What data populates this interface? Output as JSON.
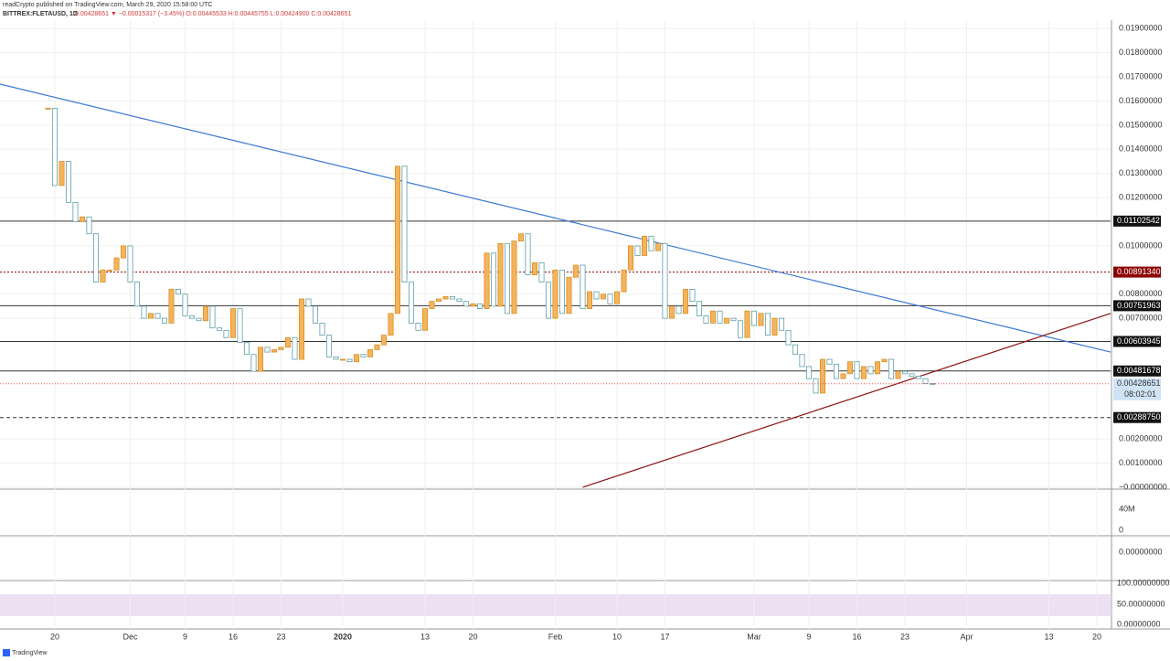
{
  "header": {
    "publisher": "readCrypto published on TradingView.com, March 29, 2020 15:58:00 UTC",
    "symbol": "BITTREX:FLETAUSD, 1D",
    "quote": "0.00428651 ▼ −0.00015317 (−3.45%) O:0.00445533 H:0.00445755 L:0.00424900 C:0.00428651"
  },
  "footer": {
    "brand": "TradingView"
  },
  "chart_data": {
    "type": "candlestick",
    "up_color": "#f5b45a",
    "down_color": "#7fd3dc",
    "x": [
      "2019-11-19",
      "2019-11-20",
      "2019-11-21",
      "2019-11-22",
      "2019-11-23",
      "2019-11-24",
      "2019-11-25",
      "2019-11-26",
      "2019-11-27",
      "2019-11-28",
      "2019-11-29",
      "2019-11-30",
      "2019-12-01",
      "2019-12-02",
      "2019-12-03",
      "2019-12-04",
      "2019-12-05",
      "2019-12-06",
      "2019-12-07",
      "2019-12-08",
      "2019-12-09",
      "2019-12-10",
      "2019-12-11",
      "2019-12-12",
      "2019-12-13",
      "2019-12-14",
      "2019-12-15",
      "2019-12-16",
      "2019-12-17",
      "2019-12-18",
      "2019-12-19",
      "2019-12-20",
      "2019-12-21",
      "2019-12-22",
      "2019-12-23",
      "2019-12-24",
      "2019-12-25",
      "2019-12-26",
      "2019-12-27",
      "2019-12-28",
      "2019-12-29",
      "2019-12-30",
      "2019-12-31",
      "2020-01-01",
      "2020-01-02",
      "2020-01-03",
      "2020-01-04",
      "2020-01-05",
      "2020-01-06",
      "2020-01-07",
      "2020-01-08",
      "2020-01-09",
      "2020-01-10",
      "2020-01-11",
      "2020-01-12",
      "2020-01-13",
      "2020-01-14",
      "2020-01-15",
      "2020-01-16",
      "2020-01-17",
      "2020-01-18",
      "2020-01-19",
      "2020-01-20",
      "2020-01-21",
      "2020-01-22",
      "2020-01-23",
      "2020-01-24",
      "2020-01-25",
      "2020-01-26",
      "2020-01-27",
      "2020-01-28",
      "2020-01-29",
      "2020-01-30",
      "2020-01-31",
      "2020-02-01",
      "2020-02-02",
      "2020-02-03",
      "2020-02-04",
      "2020-02-05",
      "2020-02-06",
      "2020-02-07",
      "2020-02-08",
      "2020-02-09",
      "2020-02-10",
      "2020-02-11",
      "2020-02-12",
      "2020-02-13",
      "2020-02-14",
      "2020-02-15",
      "2020-02-16",
      "2020-02-17",
      "2020-02-18",
      "2020-02-19",
      "2020-02-20",
      "2020-02-21",
      "2020-02-22",
      "2020-02-23",
      "2020-02-24",
      "2020-02-25",
      "2020-02-26",
      "2020-02-27",
      "2020-02-28",
      "2020-02-29",
      "2020-03-01",
      "2020-03-02",
      "2020-03-03",
      "2020-03-04",
      "2020-03-05",
      "2020-03-06",
      "2020-03-07",
      "2020-03-08",
      "2020-03-09",
      "2020-03-10",
      "2020-03-11",
      "2020-03-12",
      "2020-03-13",
      "2020-03-14",
      "2020-03-15",
      "2020-03-16",
      "2020-03-17",
      "2020-03-18",
      "2020-03-19",
      "2020-03-20",
      "2020-03-21",
      "2020-03-22",
      "2020-03-23",
      "2020-03-24",
      "2020-03-25",
      "2020-03-26",
      "2020-03-27"
    ],
    "values": [
      0.0157,
      0.0125,
      0.0135,
      0.0118,
      0.011,
      0.0112,
      0.0105,
      0.0085,
      0.009,
      0.009,
      0.0095,
      0.01,
      0.0085,
      0.0075,
      0.007,
      0.0072,
      0.007,
      0.0068,
      0.0082,
      0.008,
      0.0071,
      0.007,
      0.0069,
      0.0075,
      0.0066,
      0.0065,
      0.0062,
      0.0074,
      0.006,
      0.0055,
      0.0048,
      0.0058,
      0.0056,
      0.0057,
      0.0058,
      0.0062,
      0.0053,
      0.0078,
      0.0075,
      0.0068,
      0.0063,
      0.0054,
      0.0053,
      0.0053,
      0.0052,
      0.0055,
      0.0054,
      0.0057,
      0.0059,
      0.0063,
      0.0072,
      0.0133,
      0.0085,
      0.0068,
      0.0065,
      0.0074,
      0.0077,
      0.0078,
      0.0079,
      0.0078,
      0.0077,
      0.0075,
      0.0076,
      0.0074,
      0.0097,
      0.0075,
      0.0101,
      0.0072,
      0.0102,
      0.0105,
      0.0088,
      0.0093,
      0.0085,
      0.007,
      0.009,
      0.0072,
      0.0087,
      0.0092,
      0.0074,
      0.0081,
      0.0078,
      0.008,
      0.0076,
      0.0081,
      0.009,
      0.01,
      0.0096,
      0.0104,
      0.0098,
      0.0101,
      0.007,
      0.0075,
      0.0072,
      0.0082,
      0.0077,
      0.0071,
      0.0068,
      0.0073,
      0.0068,
      0.007,
      0.0069,
      0.0062,
      0.0073,
      0.0067,
      0.0072,
      0.0063,
      0.007,
      0.0065,
      0.0059,
      0.0055,
      0.005,
      0.0045,
      0.0039,
      0.0053,
      0.0051,
      0.0045,
      0.0047,
      0.0052,
      0.0045,
      0.005,
      0.0047,
      0.0052,
      0.0053,
      0.0045,
      0.0048,
      0.0047,
      0.0046,
      0.0045,
      0.0043,
      0.00428651
    ],
    "xlim": [
      "2019-11-12",
      "2020-04-22"
    ],
    "xticks": [
      {
        "value": "2019-11-20",
        "label": "20"
      },
      {
        "value": "2019-12-01",
        "label": "Dec"
      },
      {
        "value": "2019-12-09",
        "label": "9"
      },
      {
        "value": "2019-12-16",
        "label": "16"
      },
      {
        "value": "2019-12-23",
        "label": "23"
      },
      {
        "value": "2020-01-01",
        "label": "2020"
      },
      {
        "value": "2020-01-13",
        "label": "13"
      },
      {
        "value": "2020-01-20",
        "label": "20"
      },
      {
        "value": "2020-02-01",
        "label": "Feb"
      },
      {
        "value": "2020-02-10",
        "label": "10"
      },
      {
        "value": "2020-02-17",
        "label": "17"
      },
      {
        "value": "2020-03-01",
        "label": "Mar"
      },
      {
        "value": "2020-03-09",
        "label": "9"
      },
      {
        "value": "2020-03-16",
        "label": "16"
      },
      {
        "value": "2020-03-23",
        "label": "23"
      },
      {
        "value": "2020-04-01",
        "label": "Apr"
      },
      {
        "value": "2020-04-13",
        "label": "13"
      },
      {
        "value": "2020-04-20",
        "label": "20"
      }
    ],
    "ylim": [
      -4e-05,
      0.0192
    ],
    "yticks": [
      {
        "value": 0.019,
        "label": "0.01900000"
      },
      {
        "value": 0.018,
        "label": "0.01800000"
      },
      {
        "value": 0.017,
        "label": "0.01700000"
      },
      {
        "value": 0.016,
        "label": "0.01600000"
      },
      {
        "value": 0.015,
        "label": "0.01500000"
      },
      {
        "value": 0.014,
        "label": "0.01400000"
      },
      {
        "value": 0.013,
        "label": "0.01300000"
      },
      {
        "value": 0.012,
        "label": "0.01200000"
      },
      {
        "value": 0.01,
        "label": "0.01000000"
      },
      {
        "value": 0.008,
        "label": "0.00800000"
      },
      {
        "value": 0.007,
        "label": "0.00700000"
      },
      {
        "value": 0.002,
        "label": "0.00200000"
      },
      {
        "value": 0.001,
        "label": "0.00100000"
      },
      {
        "value": 0,
        "label": "−0.00000000"
      }
    ],
    "levels": [
      {
        "value": 0.01102542,
        "label": "0.01102542",
        "color": "#333333"
      },
      {
        "value": 0.0089134,
        "label": "0.00891340",
        "color": "#8b0000"
      },
      {
        "value": 0.00751963,
        "label": "0.00751963",
        "color": "#333333"
      },
      {
        "value": 0.00603945,
        "label": "0.00603945",
        "color": "#333333"
      },
      {
        "value": 0.00481678,
        "label": "0.00481678",
        "color": "#333333"
      },
      {
        "value": 0.0028875,
        "label": "0.00288750",
        "color": "#333333"
      }
    ],
    "last_price": {
      "value": 0.00428651,
      "label": "0.00428651",
      "countdown": "08:02:01"
    },
    "trend_lines": [
      {
        "color": "#3a78d4",
        "points": [
          [
            "2019-11-12",
            0.0167
          ],
          [
            "2020-04-22",
            0.0056
          ]
        ]
      },
      {
        "color": "#8b1010",
        "points": [
          [
            "2020-02-05",
            0
          ],
          [
            "2020-04-22",
            0.0072
          ]
        ]
      }
    ],
    "volume_ticks": [
      "40M",
      "0"
    ],
    "macd_ticks": [
      "0.00000000"
    ],
    "rsi_ticks": [
      "100.00000000",
      "50.00000000",
      "0.00000000"
    ]
  }
}
